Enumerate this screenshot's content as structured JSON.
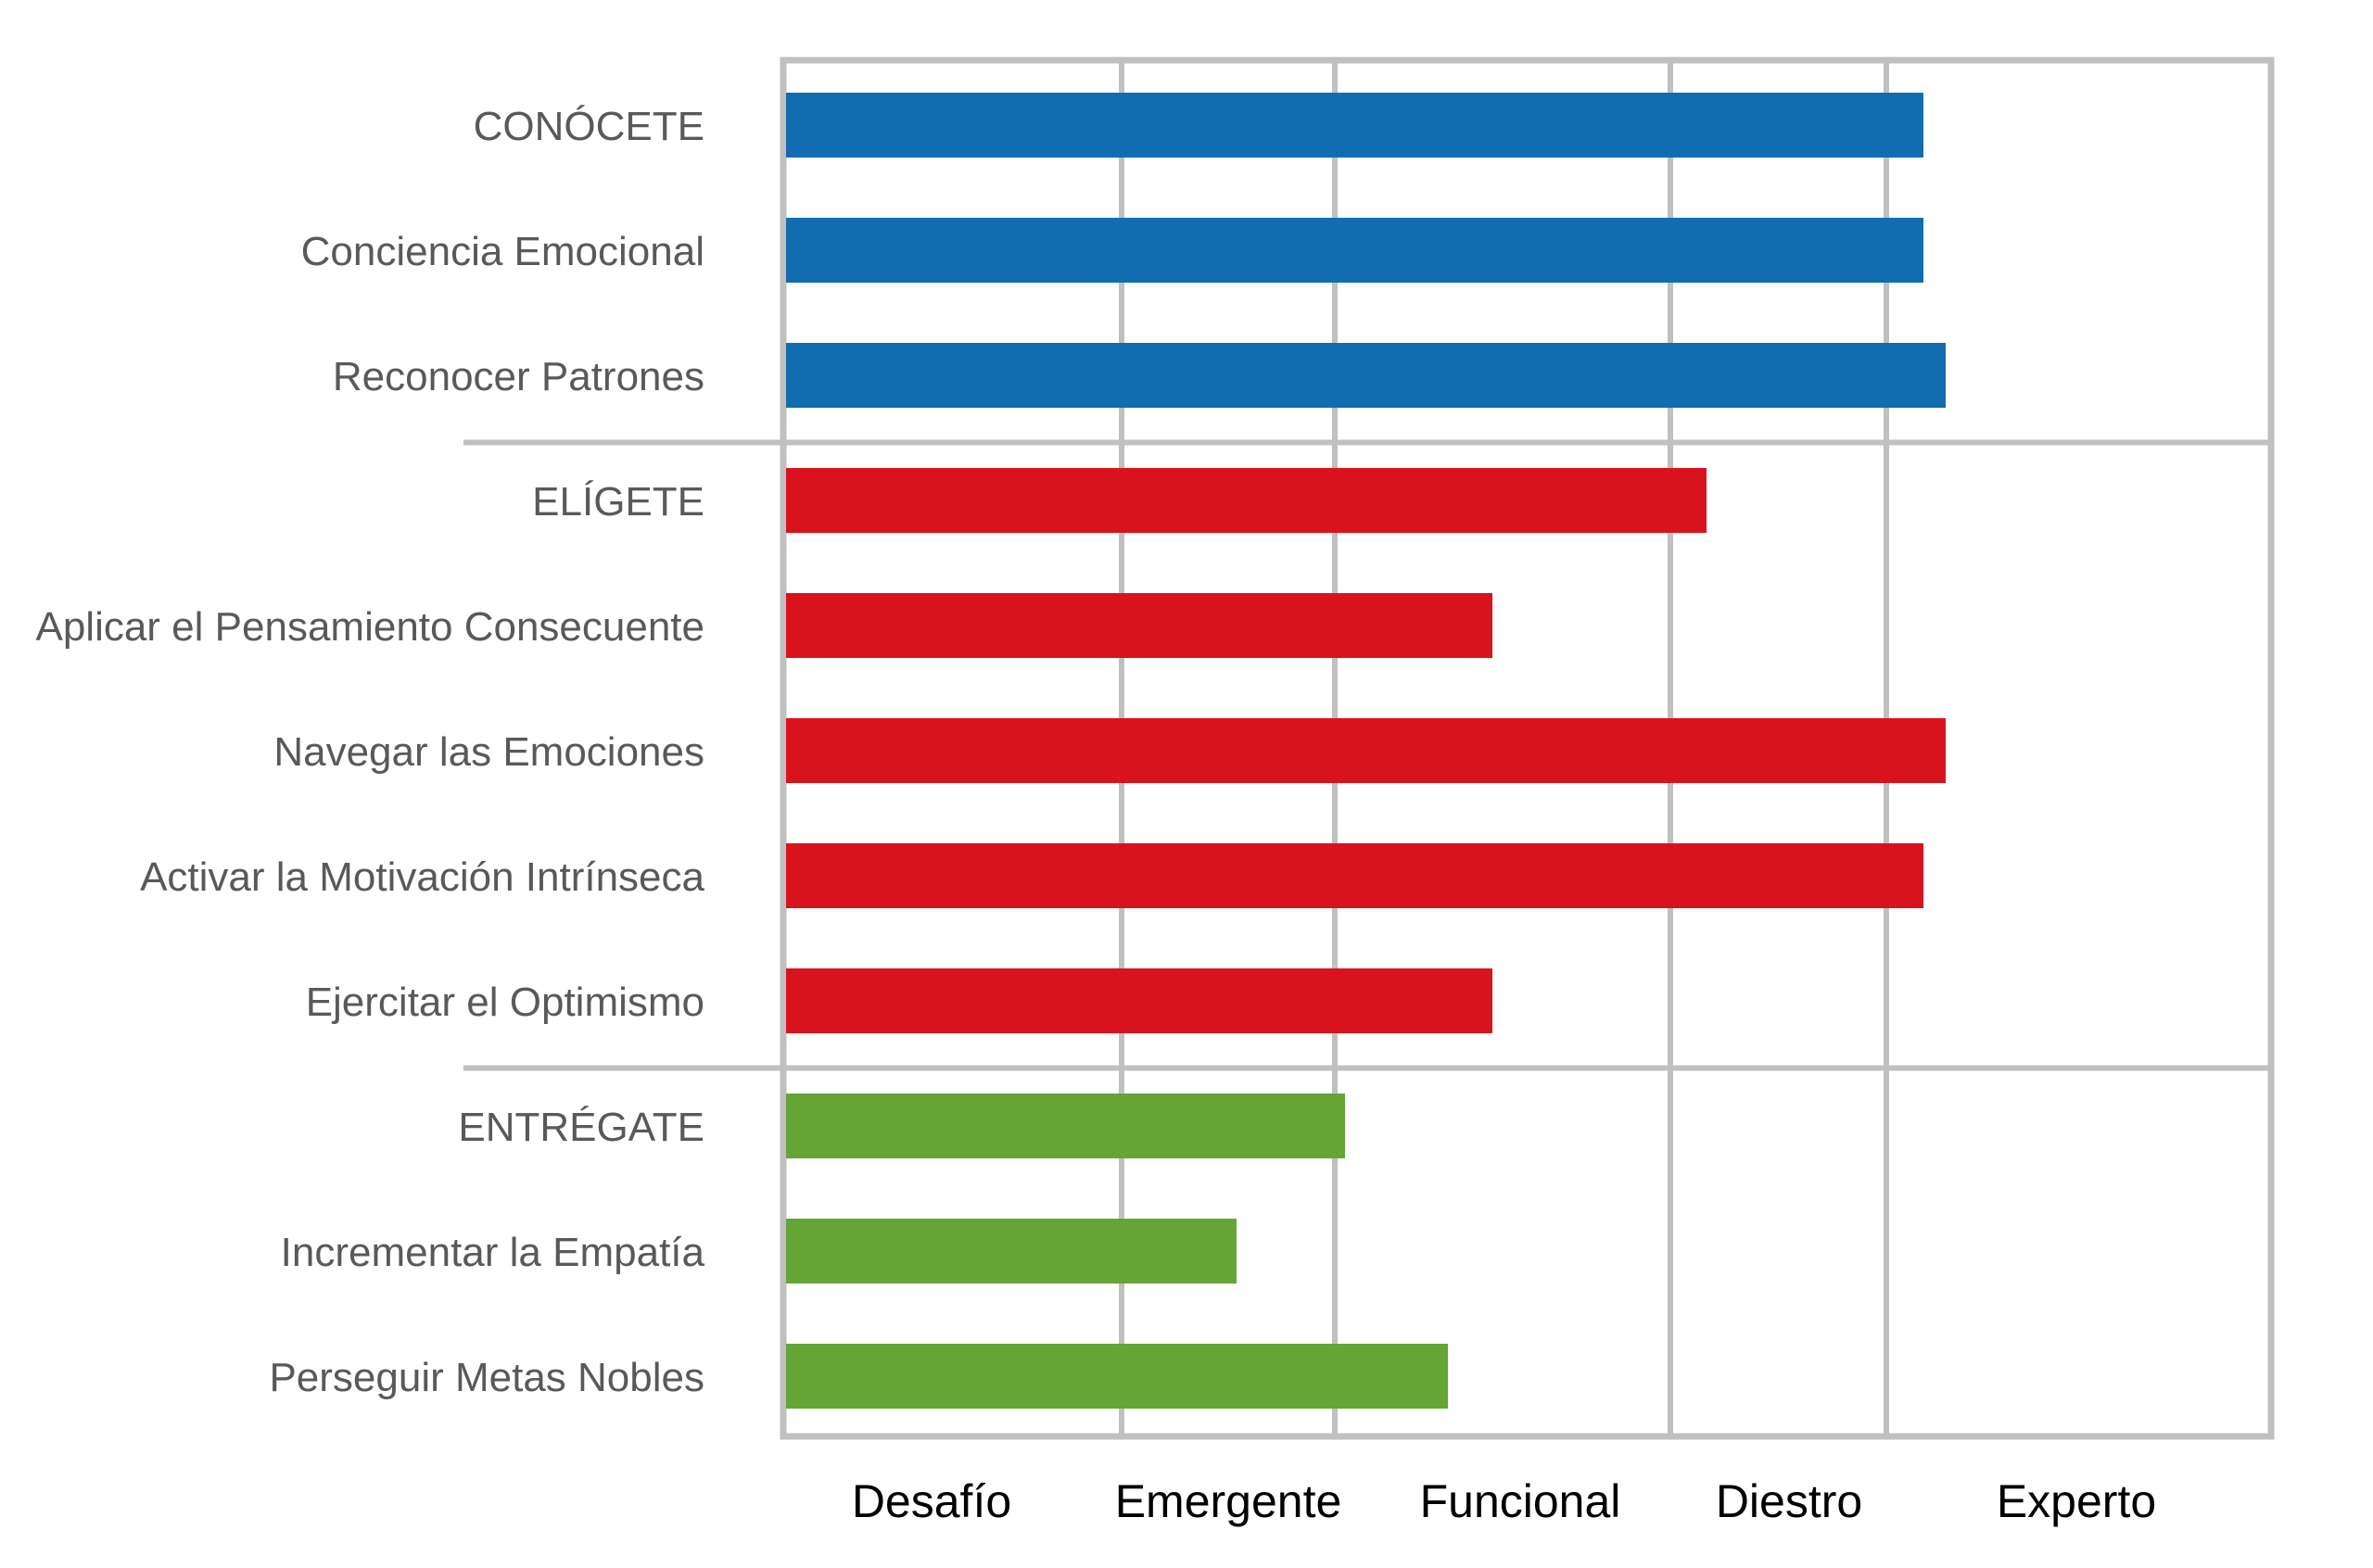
{
  "chart_data": {
    "type": "bar",
    "orientation": "horizontal",
    "title": "",
    "xlabel": "",
    "ylabel": "",
    "x_levels": [
      "Desafío",
      "Emergente",
      "Funcional",
      "Diestro",
      "Experto"
    ],
    "xlim": [
      0,
      5.35
    ],
    "grid": true,
    "legend": "none",
    "colors": {
      "conocete": "#116db0",
      "eligete": "#d9131d",
      "entregate": "#64a536",
      "grid": "#c0c0c0"
    },
    "groups": [
      {
        "name": "CONÓCETE",
        "color_key": "conocete",
        "bars": [
          {
            "label": "CONÓCETE",
            "value": 4.1
          },
          {
            "label": "Conciencia Emocional",
            "value": 4.1
          },
          {
            "label": "Reconocer Patrones",
            "value": 4.18
          }
        ]
      },
      {
        "name": "ELÍGETE",
        "color_key": "eligete",
        "bars": [
          {
            "label": "ELÍGETE",
            "value": 3.32
          },
          {
            "label": "Aplicar el Pensamiento Consecuente",
            "value": 2.55
          },
          {
            "label": "Navegar las Emociones",
            "value": 4.18
          },
          {
            "label": "Activar la Motivación Intrínseca",
            "value": 4.1
          },
          {
            "label": "Ejercitar el Optimismo",
            "value": 2.55
          }
        ]
      },
      {
        "name": "ENTRÉGATE",
        "color_key": "entregate",
        "bars": [
          {
            "label": "ENTRÉGATE",
            "value": 2.02
          },
          {
            "label": "Incrementar la Empatía",
            "value": 1.63
          },
          {
            "label": "Perseguir Metas Nobles",
            "value": 2.39
          }
        ]
      }
    ]
  }
}
